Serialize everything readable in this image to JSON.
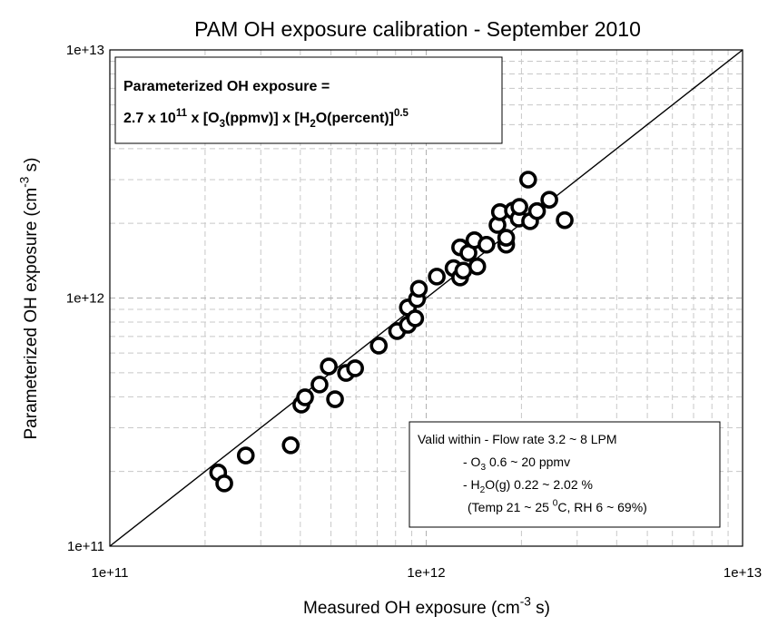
{
  "chart_data": {
    "type": "scatter",
    "title": "PAM OH exposure calibration - September 2010",
    "x_label": [
      "Measured OH exposure (cm",
      {
        "text": "-3",
        "shift": "sup"
      },
      " s)"
    ],
    "y_label": [
      "Parameterized OH exposure (cm",
      {
        "text": "-3",
        "shift": "sup"
      },
      " s)"
    ],
    "log_x": true,
    "log_y": true,
    "xlim": [
      100000000000.0,
      10000000000000.0
    ],
    "ylim": [
      100000000000.0,
      10000000000000.0
    ],
    "xticks": [
      {
        "value": 100000000000.0,
        "label": "1e+11"
      },
      {
        "value": 1000000000000.0,
        "label": "1e+12"
      },
      {
        "value": 10000000000000.0,
        "label": "1e+13"
      }
    ],
    "yticks": [
      {
        "value": 100000000000.0,
        "label": "1e+11"
      },
      {
        "value": 1000000000000.0,
        "label": "1e+12"
      },
      {
        "value": 10000000000000.0,
        "label": "1e+13"
      }
    ],
    "minor_xticks": [
      200000000000.0,
      300000000000.0,
      400000000000.0,
      500000000000.0,
      600000000000.0,
      700000000000.0,
      800000000000.0,
      900000000000.0,
      2000000000000.0,
      3000000000000.0,
      4000000000000.0,
      5000000000000.0,
      6000000000000.0,
      7000000000000.0,
      8000000000000.0,
      9000000000000.0
    ],
    "minor_yticks": [
      200000000000.0,
      300000000000.0,
      400000000000.0,
      500000000000.0,
      600000000000.0,
      700000000000.0,
      800000000000.0,
      900000000000.0,
      2000000000000.0,
      3000000000000.0,
      4000000000000.0,
      5000000000000.0,
      6000000000000.0,
      7000000000000.0,
      8000000000000.0,
      9000000000000.0
    ],
    "grid": true,
    "one_to_one_line": true,
    "color": "#000000",
    "x": [
      220000000000.0,
      230000000000.0,
      269000000000.0,
      373000000000.0,
      403000000000.0,
      414000000000.0,
      460000000000.0,
      492000000000.0,
      515000000000.0,
      558000000000.0,
      596000000000.0,
      708000000000.0,
      809000000000.0,
      875000000000.0,
      875000000000.0,
      923000000000.0,
      935000000000.0,
      948000000000.0,
      1080000000000.0,
      1220000000000.0,
      1280000000000.0,
      1280000000000.0,
      1310000000000.0,
      1360000000000.0,
      1420000000000.0,
      1450000000000.0,
      1550000000000.0,
      1680000000000.0,
      1710000000000.0,
      1790000000000.0,
      1790000000000.0,
      1880000000000.0,
      1960000000000.0,
      1970000000000.0,
      2100000000000.0,
      2130000000000.0,
      2240000000000.0,
      2450000000000.0,
      2740000000000.0
    ],
    "values": [
      198000000000.0,
      179000000000.0,
      232000000000.0,
      255000000000.0,
      372000000000.0,
      398000000000.0,
      448000000000.0,
      530000000000.0,
      391000000000.0,
      499000000000.0,
      521000000000.0,
      643000000000.0,
      736000000000.0,
      780000000000.0,
      916000000000.0,
      828000000000.0,
      990000000000.0,
      1090000000000.0,
      1220000000000.0,
      1320000000000.0,
      1210000000000.0,
      1600000000000.0,
      1290000000000.0,
      1520000000000.0,
      1710000000000.0,
      1340000000000.0,
      1640000000000.0,
      1970000000000.0,
      2220000000000.0,
      1640000000000.0,
      1750000000000.0,
      2250000000000.0,
      2090000000000.0,
      2330000000000.0,
      3000000000000.0,
      2040000000000.0,
      2240000000000.0,
      2490000000000.0,
      2060000000000.0
    ],
    "formula_box": [
      [
        "Parameterized OH exposure ="
      ],
      [
        "2.7 x 10",
        {
          "text": "11",
          "shift": "sup"
        },
        " x [O",
        {
          "text": "3",
          "shift": "sub"
        },
        "(ppmv)] x [H",
        {
          "text": "2",
          "shift": "sub"
        },
        "O(percent)]",
        {
          "text": "0.5",
          "shift": "sup"
        }
      ]
    ],
    "validity_box": [
      [
        "Valid within - Flow rate 3.2 ~ 8 LPM"
      ],
      [
        "- O",
        {
          "text": "3",
          "shift": "sub"
        },
        " 0.6 ~ 20 ppmv"
      ],
      [
        "- H",
        {
          "text": "2",
          "shift": "sub"
        },
        "O(g) 0.22 ~ 2.02 %"
      ],
      [
        "(Temp 21 ~ 25 ",
        {
          "text": "0",
          "shift": "sup"
        },
        "C, RH 6 ~ 69%)"
      ]
    ]
  }
}
